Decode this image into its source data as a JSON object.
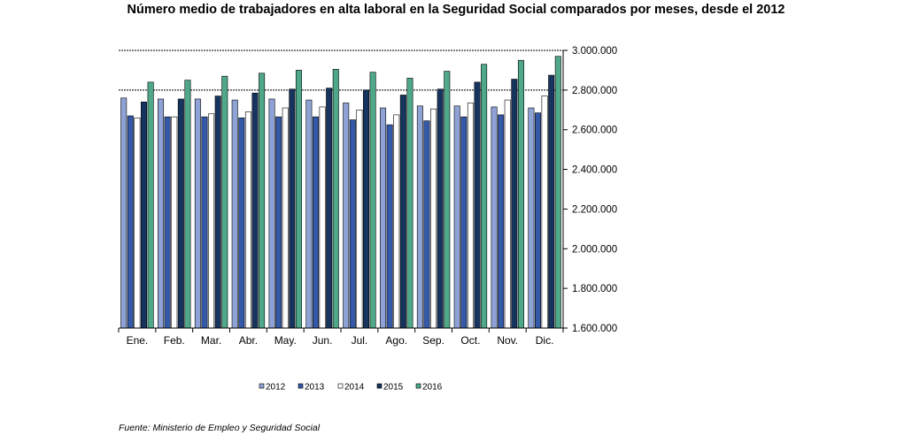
{
  "title": "Número medio de trabajadores en alta laboral en la Seguridad Social comparados por meses, desde el 2012",
  "source": "Fuente: Ministerio de Empleo y Seguridad Social",
  "chart_data": {
    "type": "bar",
    "title": "Número medio de trabajadores en alta laboral en la Seguridad Social comparados por meses, desde el 2012",
    "xlabel": "",
    "ylabel": "",
    "ylim": [
      1600000,
      3000000
    ],
    "yticks": [
      1600000,
      1800000,
      2000000,
      2200000,
      2400000,
      2600000,
      2800000,
      3000000
    ],
    "ytick_labels": [
      "1.600.000",
      "1.800.000",
      "2.000.000",
      "2.200.000",
      "2.400.000",
      "2.600.000",
      "2.800.000",
      "3.000.000"
    ],
    "y_axis_position": "right",
    "gridlines": [
      2800000,
      3000000
    ],
    "legend_position": "bottom",
    "categories": [
      "Ene.",
      "Feb.",
      "Mar.",
      "Abr.",
      "May.",
      "Jun.",
      "Jul.",
      "Ago.",
      "Sep.",
      "Oct.",
      "Nov.",
      "Dic."
    ],
    "series": [
      {
        "name": "2012",
        "color": "#8EA2D6",
        "values": [
          2760000,
          2755000,
          2755000,
          2750000,
          2755000,
          2750000,
          2735000,
          2710000,
          2720000,
          2720000,
          2715000,
          2710000
        ]
      },
      {
        "name": "2013",
        "color": "#3359A8",
        "values": [
          2670000,
          2665000,
          2665000,
          2660000,
          2665000,
          2665000,
          2650000,
          2625000,
          2645000,
          2665000,
          2675000,
          2685000
        ]
      },
      {
        "name": "2014",
        "color": "#FFFFFF",
        "values": [
          2660000,
          2665000,
          2680000,
          2690000,
          2710000,
          2715000,
          2700000,
          2675000,
          2705000,
          2735000,
          2750000,
          2770000
        ]
      },
      {
        "name": "2015",
        "color": "#17345E",
        "values": [
          2740000,
          2755000,
          2770000,
          2785000,
          2805000,
          2810000,
          2800000,
          2775000,
          2805000,
          2840000,
          2855000,
          2875000
        ]
      },
      {
        "name": "2016",
        "color": "#4FA888",
        "values": [
          2840000,
          2850000,
          2870000,
          2885000,
          2900000,
          2905000,
          2890000,
          2860000,
          2895000,
          2930000,
          2950000,
          2970000
        ]
      }
    ]
  }
}
